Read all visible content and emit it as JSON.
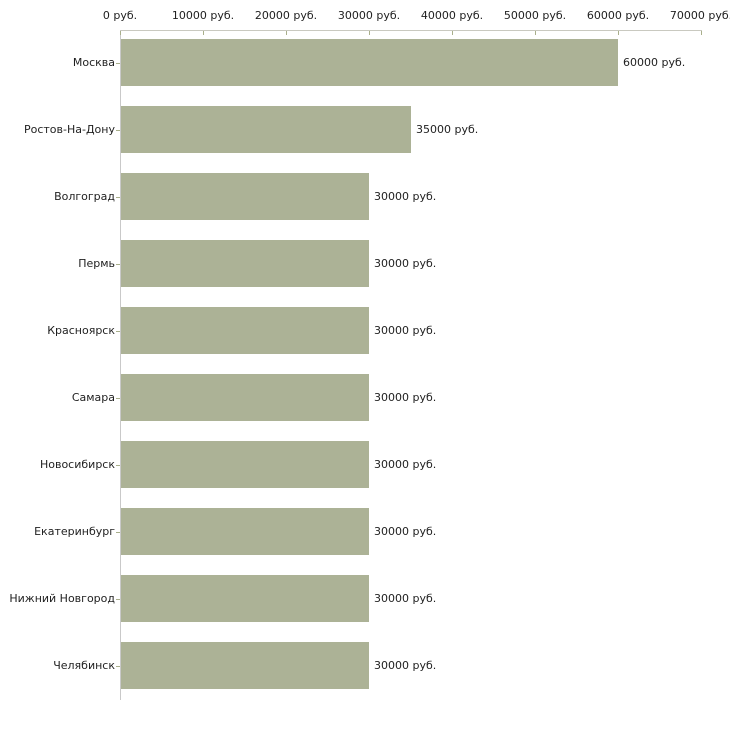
{
  "chart_data": {
    "type": "bar",
    "orientation": "horizontal",
    "title": "",
    "xlabel": "",
    "ylabel": "",
    "xlim": [
      0,
      70000
    ],
    "grid": false,
    "legend": null,
    "unit": "руб.",
    "categories": [
      "Москва",
      "Ростов-На-Дону",
      "Волгоград",
      "Пермь",
      "Красноярск",
      "Самара",
      "Новосибирск",
      "Екатеринбург",
      "Нижний Новгород",
      "Челябинск"
    ],
    "values": [
      60000,
      35000,
      30000,
      30000,
      30000,
      30000,
      30000,
      30000,
      30000,
      30000
    ],
    "value_labels": [
      "60000 руб.",
      "35000 руб.",
      "30000 руб.",
      "30000 руб.",
      "30000 руб.",
      "30000 руб.",
      "30000 руб.",
      "30000 руб.",
      "30000 руб.",
      "30000 руб."
    ],
    "x_tick_values": [
      0,
      10000,
      20000,
      30000,
      40000,
      50000,
      60000,
      70000
    ],
    "x_tick_labels": [
      "0 руб.",
      "10000 руб.",
      "20000 руб.",
      "30000 руб.",
      "40000 руб.",
      "50000 руб.",
      "60000 руб.",
      "70000 руб."
    ],
    "colors": {
      "bar": "#acb296",
      "axis_line": "#c9c9c9",
      "top_axis_line": "#c9c9c0",
      "tick": "#a9af8b",
      "text": "#1f1f1f",
      "background": "#ffffff"
    }
  }
}
